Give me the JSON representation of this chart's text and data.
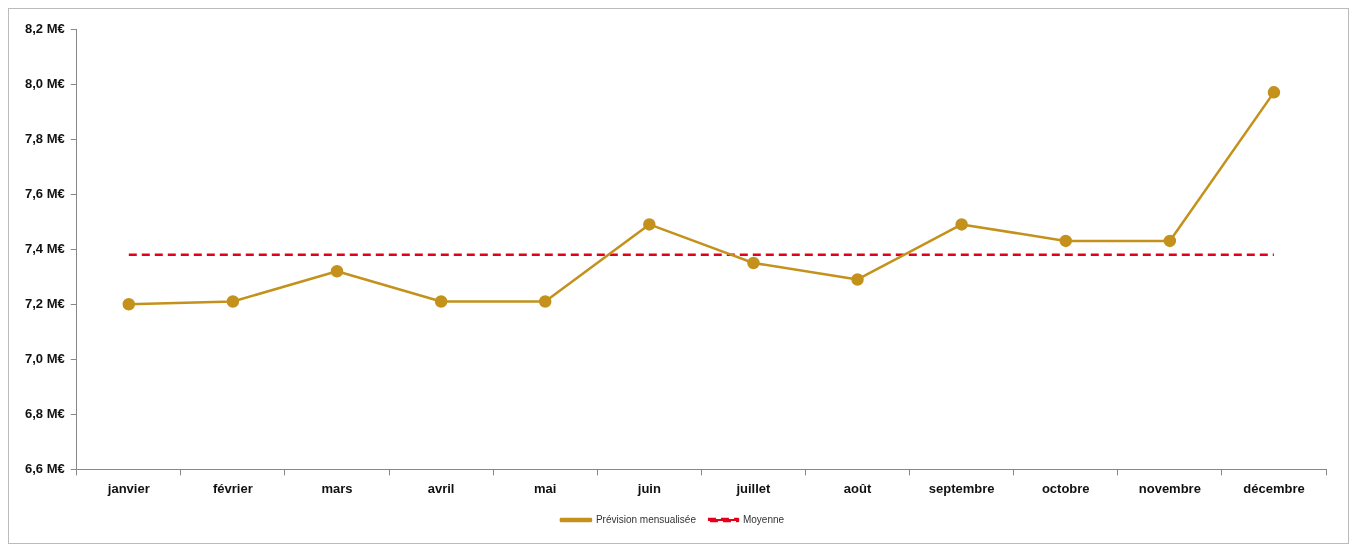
{
  "chart_data": {
    "type": "line",
    "categories": [
      "janvier",
      "février",
      "mars",
      "avril",
      "mai",
      "juin",
      "juillet",
      "août",
      "septembre",
      "octobre",
      "novembre",
      "décembre"
    ],
    "series": [
      {
        "name": "Prévision mensualisée",
        "color": "#c4921c",
        "marker": "circle",
        "line_style": "solid",
        "values": [
          7.2,
          7.21,
          7.32,
          7.21,
          7.21,
          7.49,
          7.35,
          7.29,
          7.49,
          7.43,
          7.43,
          7.97
        ]
      },
      {
        "name": "Moyenne",
        "color": "#e3001b",
        "marker": "none",
        "line_style": "dashed",
        "values": [
          7.38,
          7.38,
          7.38,
          7.38,
          7.38,
          7.38,
          7.38,
          7.38,
          7.38,
          7.38,
          7.38,
          7.38
        ]
      }
    ],
    "ylim": [
      6.6,
      8.2
    ],
    "yticks": [
      {
        "value": 6.6,
        "label": "6,6 M€"
      },
      {
        "value": 6.8,
        "label": "6,8 M€"
      },
      {
        "value": 7.0,
        "label": "7,0 M€"
      },
      {
        "value": 7.2,
        "label": "7,2 M€"
      },
      {
        "value": 7.4,
        "label": "7,4 M€"
      },
      {
        "value": 7.6,
        "label": "7,6 M€"
      },
      {
        "value": 7.8,
        "label": "7,8 M€"
      },
      {
        "value": 8.0,
        "label": "8,0 M€"
      },
      {
        "value": 8.2,
        "label": "8,2 M€"
      }
    ],
    "grid": false,
    "legend": "bottom"
  }
}
